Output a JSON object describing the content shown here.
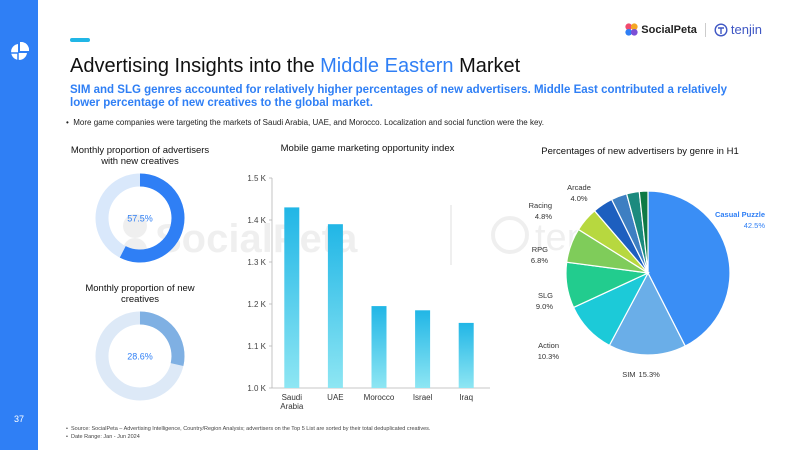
{
  "page": {
    "number": "37",
    "title_before": "Advertising Insights into the ",
    "title_highlight": "Middle Eastern",
    "title_after": " Market",
    "subtitle": "SIM and SLG genres accounted for relatively higher percentages of new advertisers. Middle East contributed a relatively lower percentage of new creatives to the global market.",
    "bullet": "More game companies were targeting the markets of Saudi Arabia, UAE, and Morocco. Localization and social function were the key.",
    "footer": [
      "Source: SocialPeta – Advertising Intelligence, Country/Region Analysis; advertisers on the Top 5 List are sorted by their total deduplicated creatives.",
      "Date Range: Jan - Jun 2024"
    ]
  },
  "brand": {
    "socialpeta": "SocialPeta",
    "tenjin": "tenjin",
    "watermark_left": "SocialPeta",
    "watermark_right": "tenjin"
  },
  "colors": {
    "accent": "#2f7ff5",
    "cyan": "#21b6e6"
  },
  "chart_data": [
    {
      "type": "pie",
      "variant": "donut",
      "title": "Monthly proportion of advertisers with new creatives",
      "value": 57.5,
      "label": "57.5%",
      "fill_color": "#2f7ff5",
      "track_color": "#d9e8fb"
    },
    {
      "type": "pie",
      "variant": "donut",
      "title": "Monthly proportion of new creatives",
      "value": 28.6,
      "label": "28.6%",
      "fill_color": "#7fb0e3",
      "track_color": "#dde9f7"
    },
    {
      "type": "bar",
      "title": "Mobile game marketing opportunity index",
      "categories": [
        "Saudi Arabia",
        "UAE",
        "Morocco",
        "Israel",
        "Iraq"
      ],
      "category_lines": [
        [
          "Saudi",
          "Arabia"
        ],
        [
          "UAE"
        ],
        [
          "Morocco"
        ],
        [
          "Israel"
        ],
        [
          "Iraq"
        ]
      ],
      "values": [
        1430,
        1390,
        1195,
        1185,
        1155
      ],
      "ylim": [
        1000,
        1500
      ],
      "yticks": [
        1000,
        1100,
        1200,
        1300,
        1400,
        1500
      ],
      "ytick_labels": [
        "1.0 K",
        "1.1 K",
        "1.2 K",
        "1.3 K",
        "1.4 K",
        "1.5 K"
      ],
      "xlabel": "",
      "ylabel": ""
    },
    {
      "type": "pie",
      "title": "Percentages of new advertisers by genre in H1",
      "slices": [
        {
          "name": "Casual Puzzle",
          "value": 42.5,
          "label": "42.5%",
          "color": "#3a8ef5"
        },
        {
          "name": "SIM",
          "value": 15.3,
          "label": "15.3%",
          "color": "#6aaee8"
        },
        {
          "name": "Action",
          "value": 10.3,
          "label": "10.3%",
          "color": "#1ccad8"
        },
        {
          "name": "SLG",
          "value": 9.0,
          "label": "9.0%",
          "color": "#22cc8e"
        },
        {
          "name": "RPG",
          "value": 6.8,
          "label": "6.8%",
          "color": "#7fcc5a"
        },
        {
          "name": "Racing",
          "value": 4.8,
          "label": "4.8%",
          "color": "#b7d83f"
        },
        {
          "name": "Arcade",
          "value": 4.0,
          "label": "4.0%",
          "color": "#1d5fbf"
        },
        {
          "name": "",
          "value": 3.1,
          "label": "",
          "color": "#3e7fc2"
        },
        {
          "name": "",
          "value": 2.5,
          "label": "",
          "color": "#1b8a7e"
        },
        {
          "name": "",
          "value": 1.7,
          "label": "",
          "color": "#0f7a45"
        }
      ]
    }
  ]
}
